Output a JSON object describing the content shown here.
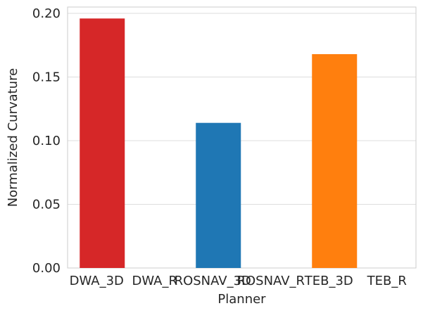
{
  "chart_data": {
    "type": "bar",
    "xlabel": "Planner",
    "ylabel": "Normalized Curvature",
    "categories": [
      "DWA_3D",
      "DWA_R",
      "ROSNAV_3D",
      "ROSNAV_R",
      "TEB_3D",
      "TEB_R"
    ],
    "values": [
      0.196,
      null,
      0.114,
      null,
      0.168,
      null
    ],
    "colors": [
      "#d62728",
      "#d62728",
      "#1f77b4",
      "#1f77b4",
      "#ff7f0e",
      "#ff7f0e"
    ],
    "ylim": [
      0,
      0.205
    ],
    "yticks": [
      0.0,
      0.05,
      0.1,
      0.15,
      0.2
    ],
    "ytick_labels": [
      "0.00",
      "0.05",
      "0.10",
      "0.15",
      "0.20"
    ],
    "grid": "horizontal",
    "style": "whitegrid",
    "legend": "none"
  }
}
